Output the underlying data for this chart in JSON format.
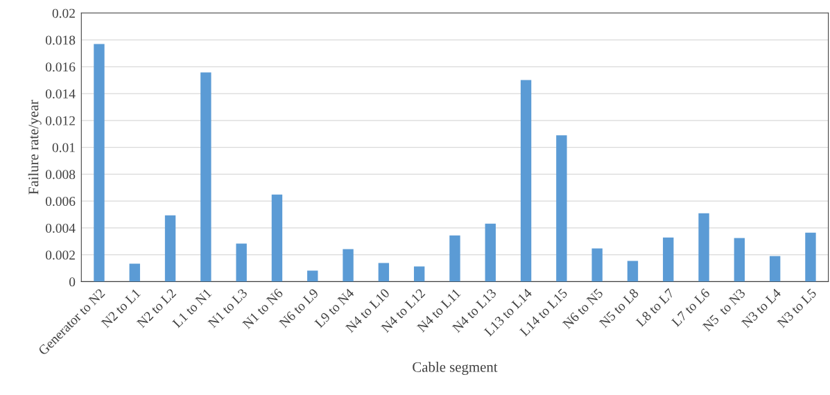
{
  "chart_data": {
    "type": "bar",
    "xlabel": "Cable segment",
    "ylabel": "Failure rate/year",
    "categories": [
      "Generator to N2",
      "N2 to L1",
      "N2 to L2",
      "L1 to N1",
      "N1 to L3",
      "N1 to N6",
      "N6 to L9",
      "L9 to N4",
      "N4 to L10",
      "N4 to L12",
      "N4 to L11",
      "N4 to L13",
      "L13 to L14",
      "L14 to L15",
      "N6 to N5",
      "N5 to L8",
      "L8 to L7",
      "L7 to L6",
      "N5  to N3",
      "N3 to L4",
      "N3 to L5"
    ],
    "values": [
      0.0177,
      0.00134,
      0.00494,
      0.01558,
      0.00283,
      0.00648,
      0.00082,
      0.00242,
      0.00139,
      0.00113,
      0.00344,
      0.00432,
      0.01501,
      0.0109,
      0.00247,
      0.00154,
      0.00329,
      0.00509,
      0.00324,
      0.0019,
      0.00365
    ],
    "color": "#5b9bd5",
    "ylim": [
      0,
      0.02
    ],
    "yticks": [
      0,
      0.002,
      0.004,
      0.006,
      0.008,
      0.01,
      0.012,
      0.014,
      0.016,
      0.018,
      0.02
    ],
    "grid": "y",
    "legend": false
  }
}
